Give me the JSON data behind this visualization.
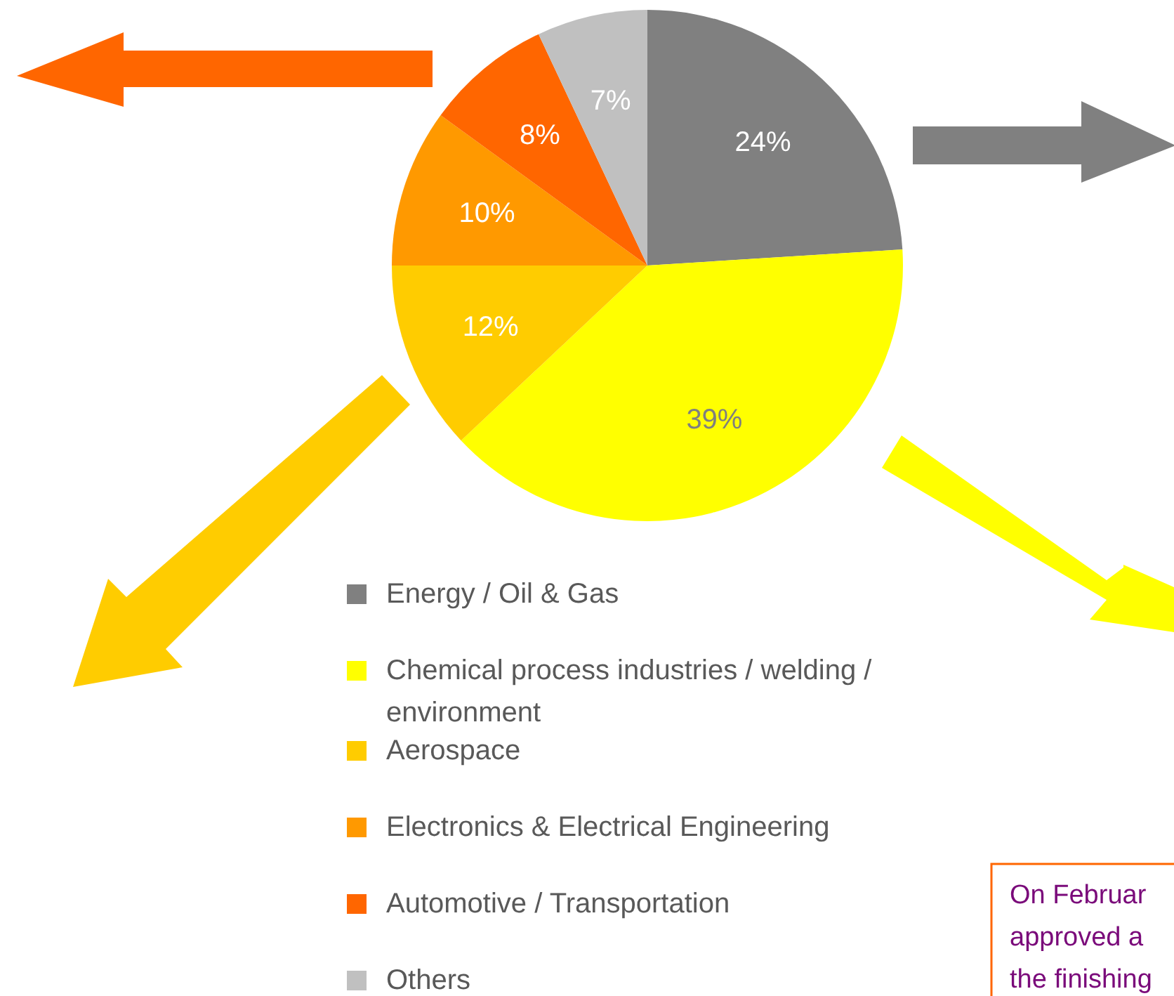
{
  "chart_data": {
    "type": "pie",
    "categories": [
      "Energy / Oil & Gas",
      "Chemical process industries / welding / environment",
      "Aerospace",
      "Electronics & Electrical Engineering",
      "Automotive / Transportation",
      "Others"
    ],
    "values": [
      24,
      39,
      12,
      10,
      8,
      7
    ],
    "colors": [
      "#808080",
      "#ffff00",
      "#ffcc00",
      "#ff9900",
      "#ff6600",
      "#c0c0c0"
    ],
    "value_labels": [
      "24%",
      "39%",
      "12%",
      "10%",
      "8%",
      "7%"
    ],
    "legend": "bottom left",
    "annotations": [
      "On Februar\napproved a\nthe finishing"
    ]
  }
}
